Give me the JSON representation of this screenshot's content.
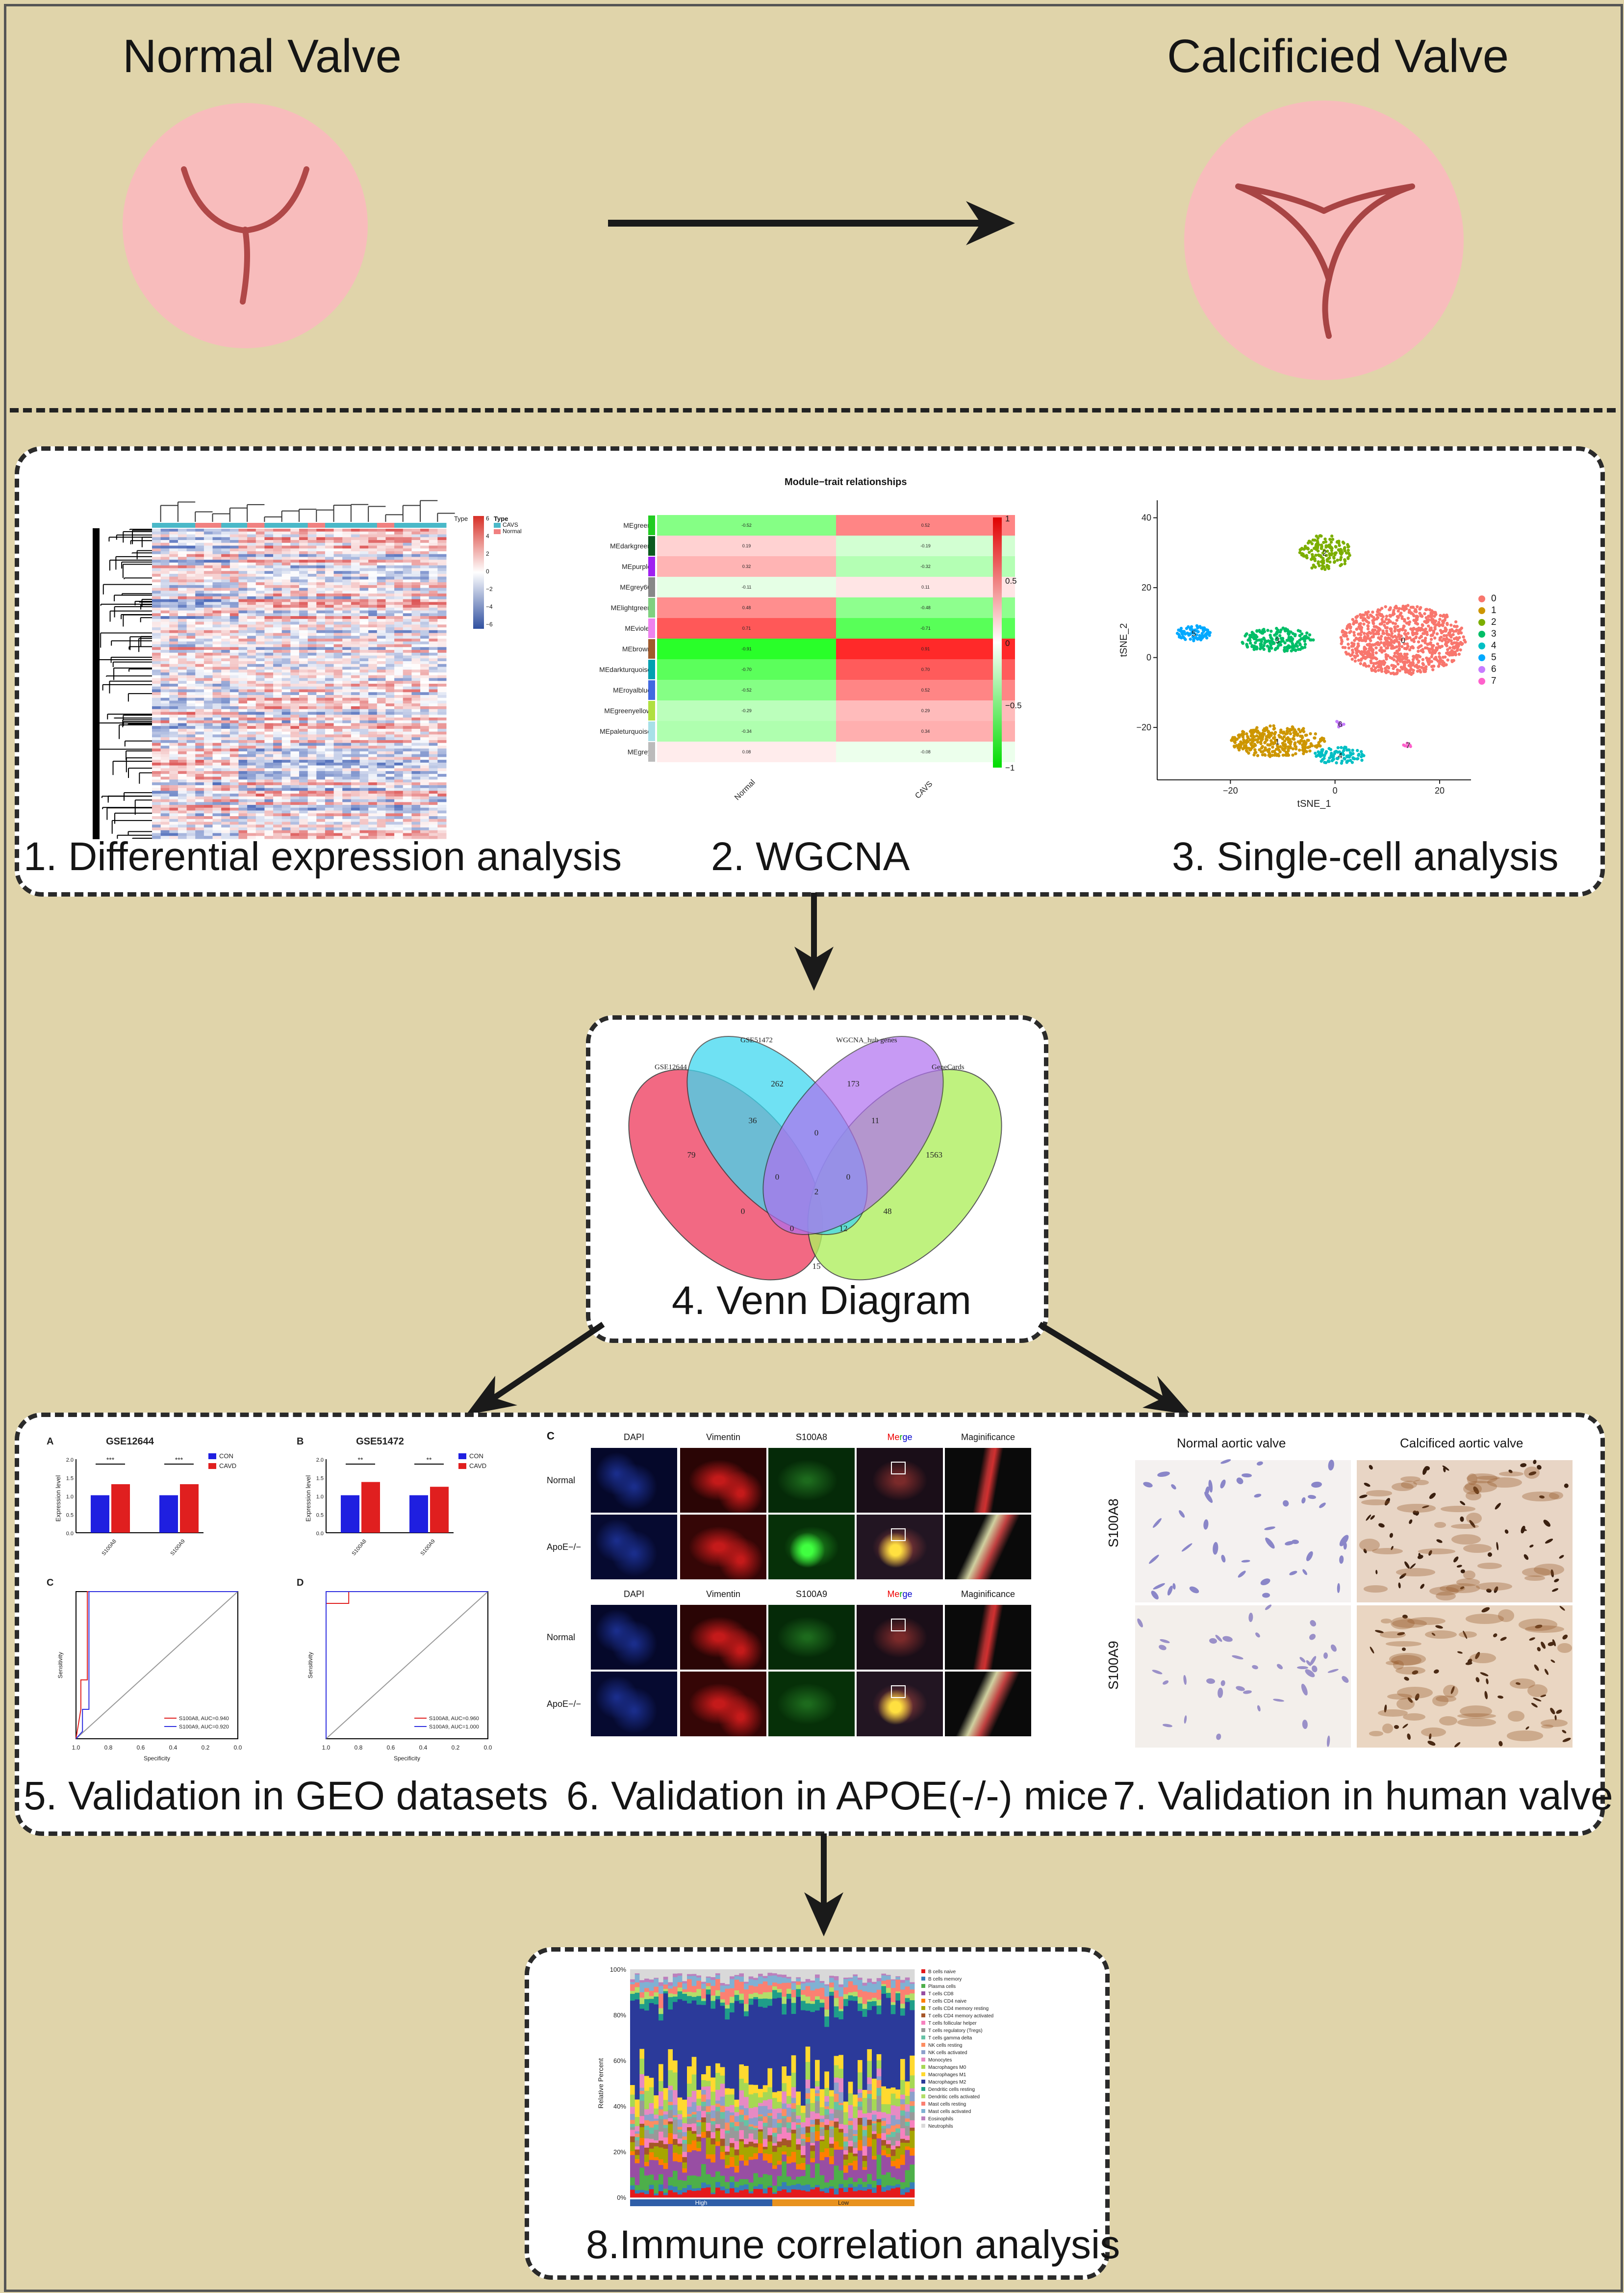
{
  "top": {
    "normal_title": "Normal Valve",
    "calcified_title": "Calcificied Valve"
  },
  "steps": {
    "s1": "1. Differential expression analysis",
    "s2": "2. WGCNA",
    "s3": "3. Single-cell analysis",
    "s4": "4. Venn Diagram",
    "s5": "5. Validation in GEO datasets",
    "s6": "6. Validation in APOE(-/-) mice",
    "s7": "7. Validation in human valve",
    "s8": "8.Immune correlation analysis"
  },
  "heatmap": {
    "type_label": "Type",
    "legend_title": "Type",
    "legend_items": [
      "CAVS",
      "Normal"
    ],
    "scale_ticks": [
      "6",
      "4",
      "2",
      "0",
      "−2",
      "−4",
      "−6"
    ]
  },
  "wgcna": {
    "title": "Module−trait relationships",
    "modules": [
      "MEgreen",
      "MEdarkgreen",
      "MEpurple",
      "MEgrey60",
      "MElightgreen",
      "MEviolet",
      "MEbrown",
      "MEdarkturquoise",
      "MEroyalblue",
      "MEgreenyellow",
      "MEpaleturquoise",
      "MEgrey"
    ],
    "module_colors": [
      "#22cc22",
      "#0b5a1e",
      "#a020f0",
      "#888888",
      "#80d080",
      "#ee82ee",
      "#a05a2c",
      "#00a0b0",
      "#4169e1",
      "#b0e040",
      "#a8e0e8",
      "#bbbbbb"
    ],
    "normal_vals": [
      -0.52,
      0.19,
      0.32,
      -0.11,
      0.48,
      0.71,
      -0.91,
      -0.7,
      -0.52,
      -0.29,
      -0.34,
      0.08
    ],
    "cavs_vals": [
      0.52,
      -0.19,
      -0.32,
      0.11,
      -0.48,
      -0.71,
      0.91,
      0.7,
      0.52,
      0.29,
      0.34,
      -0.08
    ],
    "columns": [
      "Normal",
      "CAVS"
    ],
    "scale_ticks": [
      "1",
      "0.5",
      "0",
      "−0.5",
      "−1"
    ]
  },
  "tsne": {
    "x_label": "tSNE_1",
    "y_label": "tSNE_2",
    "x_ticks": [
      "−20",
      "0",
      "20"
    ],
    "y_ticks": [
      "40",
      "20",
      "0",
      "−20"
    ],
    "clusters": [
      {
        "id": "0",
        "color": "#f8766d"
      },
      {
        "id": "1",
        "color": "#cd9600"
      },
      {
        "id": "2",
        "color": "#7cae00"
      },
      {
        "id": "3",
        "color": "#00be67"
      },
      {
        "id": "4",
        "color": "#00bfc4"
      },
      {
        "id": "5",
        "color": "#00a9ff"
      },
      {
        "id": "6",
        "color": "#c77cff"
      },
      {
        "id": "7",
        "color": "#ff61cc"
      }
    ]
  },
  "venn": {
    "sets": [
      "GSE12644",
      "GSE51472",
      "WGCNA_hub genes",
      "GeneCards"
    ],
    "counts": [
      "79",
      "262",
      "173",
      "1563",
      "36",
      "0",
      "11",
      "0",
      "0",
      "2",
      "48",
      "0",
      "0",
      "12",
      "15"
    ]
  },
  "geo": {
    "panels": [
      "A",
      "B",
      "C",
      "D"
    ],
    "titles": [
      "GSE12644",
      "GSE51472"
    ],
    "legend": [
      "CON",
      "CAVD"
    ],
    "y_label": "Expression level",
    "genes": [
      "S100A8",
      "S100A9"
    ],
    "sig_a": [
      "***",
      "***"
    ],
    "sig_b": [
      "**",
      "**"
    ],
    "roc_x_label": "Specificity",
    "roc_y_label": "Sensitivity",
    "roc_c": [
      "S100A8, AUC=0.940",
      "S100A9, AUC=0.920"
    ],
    "roc_d": [
      "S100A8, AUC=0.960",
      "S100A9, AUC=1.000"
    ],
    "roc_ticks": [
      "1.0",
      "0.8",
      "0.6",
      "0.4",
      "0.2",
      "0.0"
    ]
  },
  "mice": {
    "panel": "C",
    "columns": [
      "DAPI",
      "Vimentin",
      "S100A8",
      "Merge",
      "Maginificance"
    ],
    "columns2": [
      "DAPI",
      "Vimentin",
      "S100A9",
      "Merge",
      "Maginificance"
    ],
    "rows": [
      "Normal",
      "ApoE−/−",
      "Normal",
      "ApoE−/−"
    ]
  },
  "human": {
    "columns": [
      "Normal aortic valve",
      "Calcificed aortic valve"
    ],
    "rows": [
      "S100A8",
      "S100A9"
    ]
  },
  "immune": {
    "y_label": "Relative Percent",
    "y_ticks": [
      "100%",
      "80%",
      "60%",
      "40%",
      "20%",
      "0%"
    ],
    "groups": [
      "High",
      "Low"
    ],
    "cell_types": [
      "B cells naive",
      "B cells memory",
      "Plasma cells",
      "T cells CD8",
      "T cells CD4 naive",
      "T cells CD4 memory resting",
      "T cells CD4 memory activated",
      "T cells follicular helper",
      "T cells regulatory (Tregs)",
      "T cells gamma delta",
      "NK cells resting",
      "NK cells activated",
      "Monocytes",
      "Macrophages M0",
      "Macrophages M1",
      "Macrophages M2",
      "Dendritic cells resting",
      "Dendritic cells activated",
      "Mast cells resting",
      "Mast cells activated",
      "Eosinophils",
      "Neutrophils"
    ],
    "cell_colors": [
      "#e41a1c",
      "#377eb8",
      "#4daf4a",
      "#984ea3",
      "#ff7f00",
      "#a6a600",
      "#a65628",
      "#f781bf",
      "#999999",
      "#66c2a5",
      "#fc8d62",
      "#8da0cb",
      "#e78ac3",
      "#a6d854",
      "#ffd92f",
      "#2b3a9a",
      "#1f9e89",
      "#b3de69",
      "#fb8072",
      "#80b1d3",
      "#bc80bd",
      "#d9d9d9"
    ]
  }
}
